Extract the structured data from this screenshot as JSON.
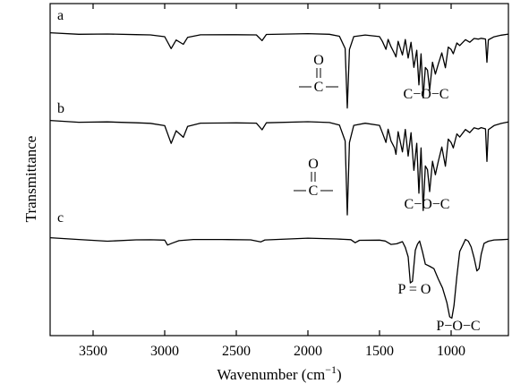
{
  "chart_data": {
    "type": "line",
    "xlabel": "Wavenumber (cm",
    "xlabel_unit_sup": "−1",
    "xlabel_close": ")",
    "ylabel": "Transmittance",
    "xlim": [
      3800,
      600
    ],
    "x_reversed": true,
    "x_ticks": [
      3500,
      3000,
      2500,
      2000,
      1500,
      1000
    ],
    "y_ticks_shown": false,
    "grid": false,
    "series": [
      {
        "name": "a",
        "baseline_offset": 0,
        "points": [
          [
            3800,
            0
          ],
          [
            3600,
            0.03
          ],
          [
            3400,
            0.01
          ],
          [
            3200,
            0.04
          ],
          [
            3100,
            0.06
          ],
          [
            3000,
            0.12
          ],
          [
            2955,
            0.45
          ],
          [
            2920,
            0.2
          ],
          [
            2870,
            0.32
          ],
          [
            2840,
            0.12
          ],
          [
            2750,
            0.06
          ],
          [
            2500,
            0.04
          ],
          [
            2360,
            0.05
          ],
          [
            2320,
            0.22
          ],
          [
            2290,
            0.06
          ],
          [
            2000,
            0.04
          ],
          [
            1850,
            0.05
          ],
          [
            1780,
            0.1
          ],
          [
            1740,
            0.45
          ],
          [
            1725,
            2.2
          ],
          [
            1710,
            0.5
          ],
          [
            1680,
            0.1
          ],
          [
            1600,
            0.05
          ],
          [
            1500,
            0.1
          ],
          [
            1480,
            0.22
          ],
          [
            1455,
            0.5
          ],
          [
            1440,
            0.2
          ],
          [
            1420,
            0.4
          ],
          [
            1395,
            0.6
          ],
          [
            1385,
            0.7
          ],
          [
            1370,
            0.25
          ],
          [
            1340,
            0.65
          ],
          [
            1320,
            0.2
          ],
          [
            1300,
            0.75
          ],
          [
            1280,
            0.25
          ],
          [
            1260,
            1.0
          ],
          [
            1240,
            0.5
          ],
          [
            1225,
            1.5
          ],
          [
            1210,
            0.6
          ],
          [
            1195,
            1.9
          ],
          [
            1180,
            1.0
          ],
          [
            1165,
            1.1
          ],
          [
            1150,
            1.7
          ],
          [
            1130,
            0.85
          ],
          [
            1110,
            1.2
          ],
          [
            1090,
            0.9
          ],
          [
            1065,
            0.6
          ],
          [
            1040,
            1.0
          ],
          [
            1020,
            0.4
          ],
          [
            1000,
            0.5
          ],
          [
            985,
            0.6
          ],
          [
            960,
            0.3
          ],
          [
            940,
            0.35
          ],
          [
            900,
            0.2
          ],
          [
            870,
            0.25
          ],
          [
            840,
            0.15
          ],
          [
            810,
            0.2
          ],
          [
            790,
            0.15
          ],
          [
            760,
            0.2
          ],
          [
            750,
            0.85
          ],
          [
            740,
            0.2
          ],
          [
            700,
            0.1
          ],
          [
            650,
            0.05
          ],
          [
            600,
            0.02
          ]
        ]
      },
      {
        "name": "b",
        "baseline_offset": 1,
        "points": [
          [
            3800,
            0
          ],
          [
            3600,
            0.03
          ],
          [
            3400,
            0.01
          ],
          [
            3200,
            0.04
          ],
          [
            3100,
            0.06
          ],
          [
            3000,
            0.12
          ],
          [
            2955,
            0.5
          ],
          [
            2920,
            0.22
          ],
          [
            2870,
            0.36
          ],
          [
            2840,
            0.12
          ],
          [
            2750,
            0.06
          ],
          [
            2500,
            0.04
          ],
          [
            2360,
            0.05
          ],
          [
            2320,
            0.2
          ],
          [
            2290,
            0.06
          ],
          [
            2000,
            0.04
          ],
          [
            1850,
            0.05
          ],
          [
            1780,
            0.1
          ],
          [
            1740,
            0.45
          ],
          [
            1725,
            2.1
          ],
          [
            1710,
            0.5
          ],
          [
            1680,
            0.1
          ],
          [
            1600,
            0.05
          ],
          [
            1500,
            0.1
          ],
          [
            1480,
            0.25
          ],
          [
            1455,
            0.5
          ],
          [
            1440,
            0.2
          ],
          [
            1420,
            0.45
          ],
          [
            1395,
            0.6
          ],
          [
            1385,
            0.75
          ],
          [
            1370,
            0.25
          ],
          [
            1340,
            0.7
          ],
          [
            1320,
            0.2
          ],
          [
            1300,
            0.8
          ],
          [
            1280,
            0.25
          ],
          [
            1260,
            1.1
          ],
          [
            1240,
            0.5
          ],
          [
            1225,
            1.6
          ],
          [
            1210,
            0.6
          ],
          [
            1195,
            2.0
          ],
          [
            1180,
            1.0
          ],
          [
            1165,
            1.1
          ],
          [
            1150,
            1.6
          ],
          [
            1130,
            0.9
          ],
          [
            1110,
            1.2
          ],
          [
            1090,
            0.9
          ],
          [
            1065,
            0.6
          ],
          [
            1040,
            1.0
          ],
          [
            1020,
            0.4
          ],
          [
            1000,
            0.5
          ],
          [
            985,
            0.6
          ],
          [
            960,
            0.3
          ],
          [
            940,
            0.35
          ],
          [
            900,
            0.2
          ],
          [
            870,
            0.25
          ],
          [
            840,
            0.15
          ],
          [
            810,
            0.2
          ],
          [
            790,
            0.15
          ],
          [
            760,
            0.2
          ],
          [
            750,
            0.9
          ],
          [
            740,
            0.2
          ],
          [
            700,
            0.1
          ],
          [
            650,
            0.05
          ],
          [
            600,
            0.02
          ]
        ]
      },
      {
        "name": "c",
        "baseline_offset": 2,
        "points": [
          [
            3800,
            0
          ],
          [
            3600,
            0.04
          ],
          [
            3400,
            0.08
          ],
          [
            3200,
            0.05
          ],
          [
            3100,
            0.06
          ],
          [
            3000,
            0.08
          ],
          [
            2980,
            0.22
          ],
          [
            2950,
            0.18
          ],
          [
            2900,
            0.1
          ],
          [
            2800,
            0.06
          ],
          [
            2600,
            0.04
          ],
          [
            2400,
            0.05
          ],
          [
            2330,
            0.1
          ],
          [
            2300,
            0.06
          ],
          [
            2000,
            0.03
          ],
          [
            1800,
            0.04
          ],
          [
            1700,
            0.05
          ],
          [
            1670,
            0.12
          ],
          [
            1640,
            0.08
          ],
          [
            1500,
            0.06
          ],
          [
            1460,
            0.1
          ],
          [
            1420,
            0.2
          ],
          [
            1380,
            0.15
          ],
          [
            1340,
            0.12
          ],
          [
            1320,
            0.3
          ],
          [
            1300,
            0.6
          ],
          [
            1285,
            1.4
          ],
          [
            1270,
            1.35
          ],
          [
            1250,
            0.4
          ],
          [
            1235,
            0.2
          ],
          [
            1220,
            0.1
          ],
          [
            1200,
            0.45
          ],
          [
            1180,
            0.8
          ],
          [
            1150,
            0.9
          ],
          [
            1120,
            0.95
          ],
          [
            1090,
            1.25
          ],
          [
            1060,
            1.55
          ],
          [
            1030,
            2.0
          ],
          [
            1010,
            2.45
          ],
          [
            995,
            2.5
          ],
          [
            980,
            2.1
          ],
          [
            960,
            1.2
          ],
          [
            940,
            0.4
          ],
          [
            915,
            0.2
          ],
          [
            900,
            0.05
          ],
          [
            880,
            0.1
          ],
          [
            860,
            0.3
          ],
          [
            840,
            0.6
          ],
          [
            820,
            1.0
          ],
          [
            805,
            0.95
          ],
          [
            790,
            0.5
          ],
          [
            770,
            0.15
          ],
          [
            740,
            0.1
          ],
          [
            700,
            0.05
          ],
          [
            650,
            0.04
          ],
          [
            600,
            0.03
          ]
        ]
      }
    ],
    "annotations": [
      {
        "id": "carbonyl-a",
        "text_top": "O",
        "text_main": "C",
        "near_x": 1725,
        "series": "a"
      },
      {
        "id": "coc-a",
        "text": "C−O−C",
        "near_x": 1200,
        "series": "a"
      },
      {
        "id": "carbonyl-b",
        "text_top": "O",
        "text_main": "C",
        "near_x": 1725,
        "series": "b"
      },
      {
        "id": "coc-b",
        "text": "C−O−C",
        "near_x": 1190,
        "series": "b"
      },
      {
        "id": "po-c",
        "text": "P = O",
        "near_x": 1270,
        "series": "c"
      },
      {
        "id": "poc-c",
        "text": "P−O−C",
        "near_x": 995,
        "series": "c"
      }
    ]
  }
}
